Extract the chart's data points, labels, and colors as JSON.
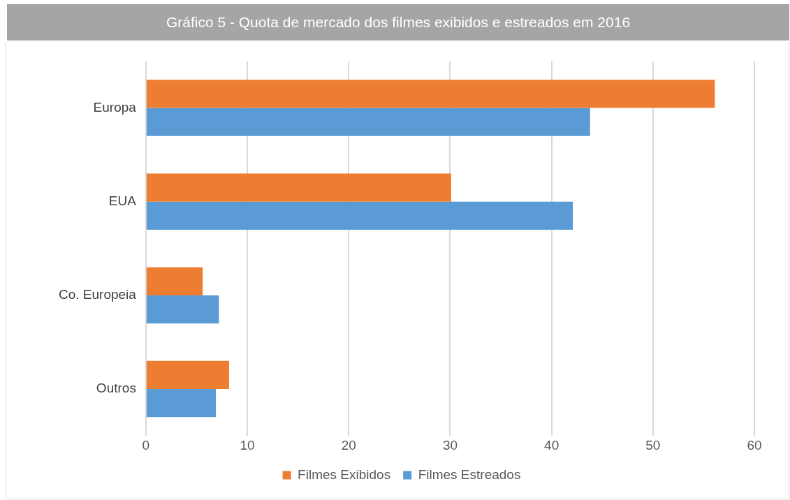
{
  "chart_data": {
    "type": "bar",
    "orientation": "horizontal",
    "title": "Gráfico 5 - Quota de mercado dos filmes exibidos e estreados em 2016",
    "categories": [
      "Europa",
      "EUA",
      "Co. Europeia",
      "Outros"
    ],
    "series": [
      {
        "name": "Filmes Exibidos",
        "color": "#ed7d31",
        "values": [
          56.1,
          30.1,
          5.6,
          8.2
        ]
      },
      {
        "name": "Filmes Estreados",
        "color": "#5b9bd5",
        "values": [
          43.8,
          42.1,
          7.2,
          6.9
        ]
      }
    ],
    "xlim": [
      0,
      60
    ],
    "xticks": [
      0,
      10,
      20,
      30,
      40,
      50,
      60
    ],
    "grid": "x",
    "legend": "bottom"
  }
}
